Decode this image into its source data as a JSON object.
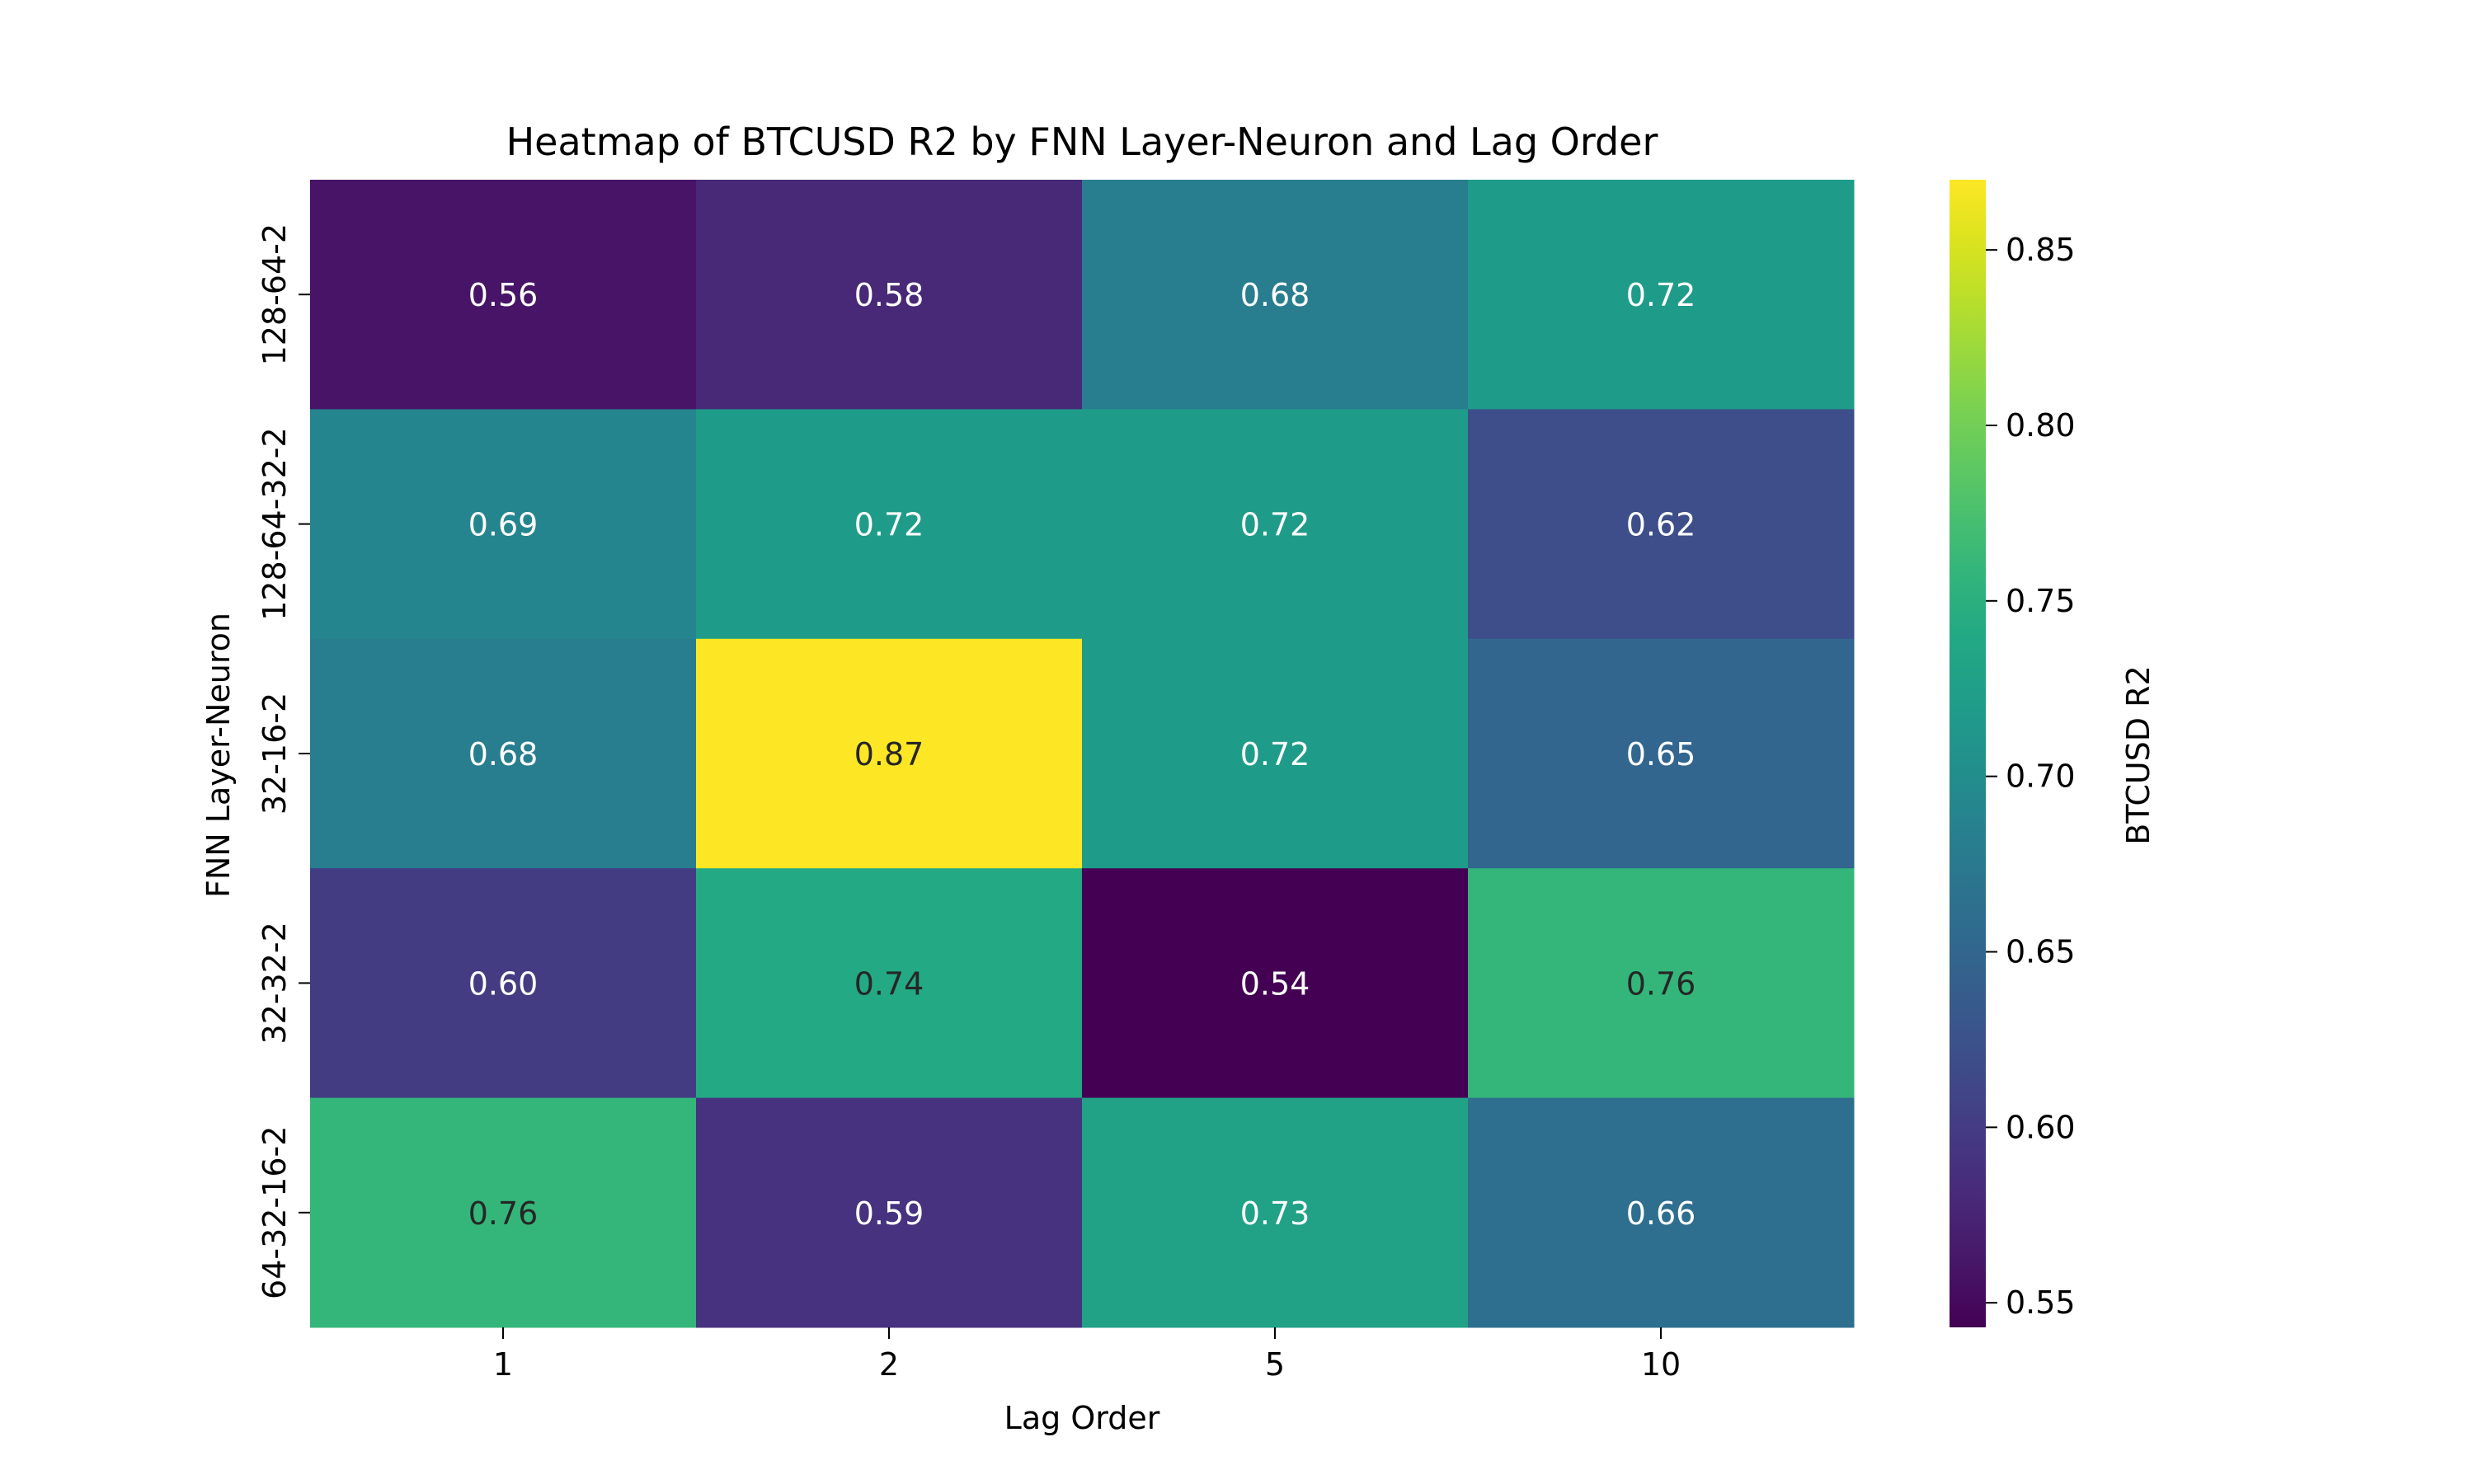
{
  "chart_data": {
    "type": "heatmap",
    "title": "Heatmap of BTCUSD R2 by FNN Layer-Neuron and Lag Order",
    "xlabel": "Lag Order",
    "ylabel": "FNN Layer-Neuron",
    "x_categories": [
      "1",
      "2",
      "5",
      "10"
    ],
    "y_categories": [
      "128-64-2",
      "128-64-32-2",
      "32-16-2",
      "32-32-2",
      "64-32-16-2"
    ],
    "values": [
      [
        0.56,
        0.58,
        0.68,
        0.72
      ],
      [
        0.69,
        0.72,
        0.72,
        0.62
      ],
      [
        0.68,
        0.87,
        0.72,
        0.65
      ],
      [
        0.6,
        0.74,
        0.54,
        0.76
      ],
      [
        0.76,
        0.59,
        0.73,
        0.66
      ]
    ],
    "value_labels": [
      [
        "0.56",
        "0.58",
        "0.68",
        "0.72"
      ],
      [
        "0.69",
        "0.72",
        "0.72",
        "0.62"
      ],
      [
        "0.68",
        "0.87",
        "0.72",
        "0.65"
      ],
      [
        "0.60",
        "0.74",
        "0.54",
        "0.76"
      ],
      [
        "0.76",
        "0.59",
        "0.73",
        "0.66"
      ]
    ],
    "colormap": "viridis",
    "colorbar": {
      "label": "BTCUSD R2",
      "range": [
        0.543,
        0.87
      ],
      "ticks": [
        0.55,
        0.6,
        0.65,
        0.7,
        0.75,
        0.8,
        0.85
      ],
      "tick_labels": [
        "0.55",
        "0.60",
        "0.65",
        "0.70",
        "0.75",
        "0.80",
        "0.85"
      ]
    }
  }
}
